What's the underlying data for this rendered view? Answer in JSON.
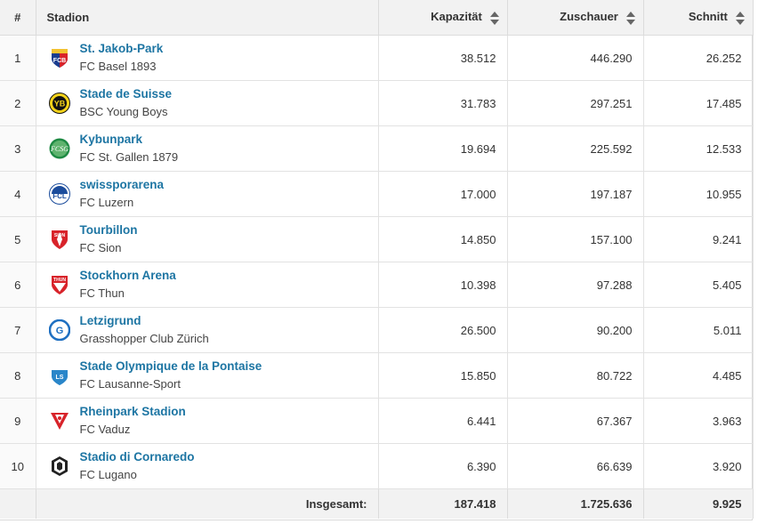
{
  "header": {
    "rank": "#",
    "stadium": "Stadion",
    "capacity": "Kapazität",
    "attendance": "Zuschauer",
    "average": "Schnitt"
  },
  "rows": [
    {
      "rank": "1",
      "stadium": "St. Jakob-Park",
      "club": "FC Basel 1893",
      "capacity": "38.512",
      "attendance": "446.290",
      "average": "26.252",
      "logo_icon": "fc-basel-crest-icon"
    },
    {
      "rank": "2",
      "stadium": "Stade de Suisse",
      "club": "BSC Young Boys",
      "capacity": "31.783",
      "attendance": "297.251",
      "average": "17.485",
      "logo_icon": "young-boys-crest-icon"
    },
    {
      "rank": "3",
      "stadium": "Kybunpark",
      "club": "FC St. Gallen 1879",
      "capacity": "19.694",
      "attendance": "225.592",
      "average": "12.533",
      "logo_icon": "st-gallen-crest-icon"
    },
    {
      "rank": "4",
      "stadium": "swissporarena",
      "club": "FC Luzern",
      "capacity": "17.000",
      "attendance": "197.187",
      "average": "10.955",
      "logo_icon": "fc-luzern-crest-icon"
    },
    {
      "rank": "5",
      "stadium": "Tourbillon",
      "club": "FC Sion",
      "capacity": "14.850",
      "attendance": "157.100",
      "average": "9.241",
      "logo_icon": "fc-sion-crest-icon"
    },
    {
      "rank": "6",
      "stadium": "Stockhorn Arena",
      "club": "FC Thun",
      "capacity": "10.398",
      "attendance": "97.288",
      "average": "5.405",
      "logo_icon": "fc-thun-crest-icon"
    },
    {
      "rank": "7",
      "stadium": "Letzigrund",
      "club": "Grasshopper Club Zürich",
      "capacity": "26.500",
      "attendance": "90.200",
      "average": "5.011",
      "logo_icon": "grasshoppers-crest-icon"
    },
    {
      "rank": "8",
      "stadium": "Stade Olympique de la Pontaise",
      "club": "FC Lausanne-Sport",
      "capacity": "15.850",
      "attendance": "80.722",
      "average": "4.485",
      "logo_icon": "lausanne-sport-crest-icon"
    },
    {
      "rank": "9",
      "stadium": "Rheinpark Stadion",
      "club": "FC Vaduz",
      "capacity": "6.441",
      "attendance": "67.367",
      "average": "3.963",
      "logo_icon": "fc-vaduz-crest-icon"
    },
    {
      "rank": "10",
      "stadium": "Stadio di Cornaredo",
      "club": "FC Lugano",
      "capacity": "6.390",
      "attendance": "66.639",
      "average": "3.920",
      "logo_icon": "fc-lugano-crest-icon"
    }
  ],
  "footer": {
    "label": "Insgesamt:",
    "capacity": "187.418",
    "attendance": "1.725.636",
    "average": "9.925"
  },
  "colors": {
    "link": "#1d75a3",
    "header_bg": "#f2f2f2",
    "accent": "#5dc3d6"
  }
}
